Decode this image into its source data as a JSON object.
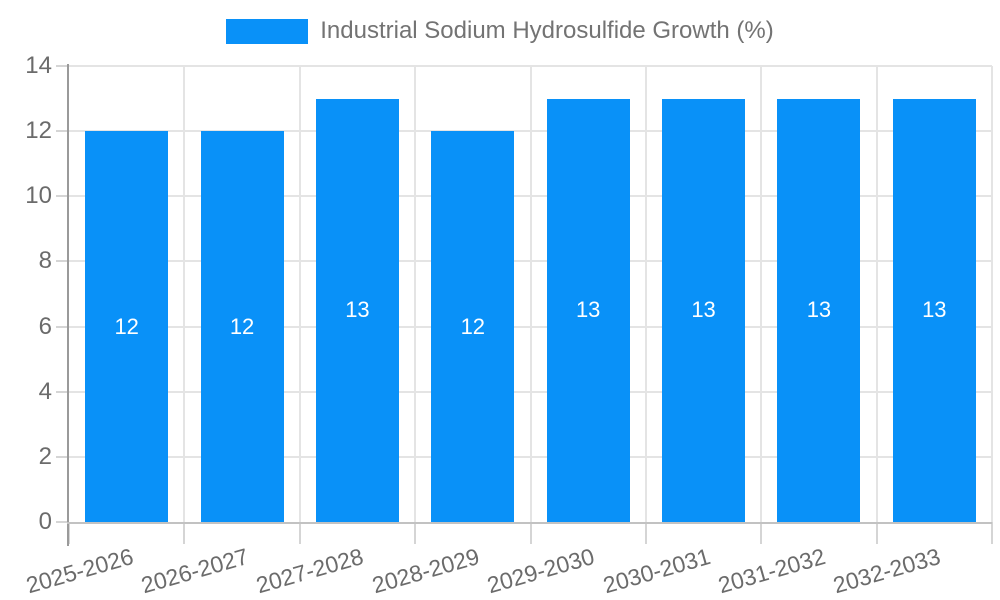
{
  "chart_data": {
    "type": "bar",
    "title": "Industrial Sodium Hydrosulfide Growth (%)",
    "legend_position": "top-center",
    "categories": [
      "2025-2026",
      "2026-2027",
      "2027-2028",
      "2028-2029",
      "2029-2030",
      "2030-2031",
      "2031-2032",
      "2032-2033"
    ],
    "values": [
      12,
      12,
      13,
      12,
      13,
      13,
      13,
      13
    ],
    "bar_value_labels": [
      "12",
      "12",
      "13",
      "12",
      "13",
      "13",
      "13",
      "13"
    ],
    "xlabel": "",
    "ylabel": "",
    "ylim": [
      0,
      14
    ],
    "yticks": [
      0,
      2,
      4,
      6,
      8,
      10,
      12,
      14
    ],
    "grid": true,
    "x_label_rotation_deg": -16,
    "colors": {
      "bar": "#0991F8",
      "bar_label": "#FFFFFF",
      "grid_line": "#E4E4E4",
      "tick_line": "#D5D5D5",
      "y_axis_line": "#9A9A9A",
      "x_axis_line": "#C2C2C2",
      "axis_label": "#6B6B6B",
      "legend_text": "#737373",
      "background": "#FFFFFF"
    }
  }
}
